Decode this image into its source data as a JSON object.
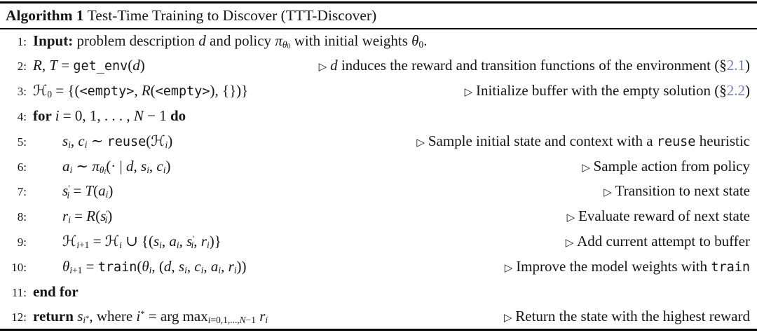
{
  "colors": {
    "link": "#6e7ec8",
    "text": "#161616",
    "rule": "#000000"
  },
  "title": {
    "label": "Algorithm 1",
    "text": " Test-Time Training to Discover (TTT-Discover)"
  },
  "lines": [
    {
      "num": "1:",
      "indent": 0,
      "code": [
        {
          "t": "Input:",
          "s": "kw"
        },
        {
          "t": " problem description "
        },
        {
          "t": "d",
          "s": "it"
        },
        {
          "t": " and policy "
        },
        {
          "t": "π",
          "s": "it"
        },
        {
          "t": "θ",
          "s": "sub it"
        },
        {
          "t": "0",
          "s": "subsub"
        },
        {
          "t": " with initial weights "
        },
        {
          "t": "θ",
          "s": "it"
        },
        {
          "t": "0",
          "s": "sub"
        },
        {
          "t": "."
        }
      ]
    },
    {
      "num": "2:",
      "indent": 0,
      "code": [
        {
          "t": "R",
          "s": "it"
        },
        {
          "t": ", "
        },
        {
          "t": "T",
          "s": "it"
        },
        {
          "t": " = "
        },
        {
          "t": "get_env",
          "s": "tt"
        },
        {
          "t": "("
        },
        {
          "t": "d",
          "s": "it"
        },
        {
          "t": ")"
        }
      ],
      "comment": [
        {
          "t": "▷ ",
          "s": "tri"
        },
        {
          "t": "d",
          "s": "it"
        },
        {
          "t": " induces the reward and transition functions of the environment (§"
        },
        {
          "t": "2.1",
          "s": "link"
        },
        {
          "t": ")"
        }
      ]
    },
    {
      "num": "3:",
      "indent": 0,
      "code": [
        {
          "t": "ℋ",
          "s": "scr"
        },
        {
          "t": "0",
          "s": "sub"
        },
        {
          "t": " = {("
        },
        {
          "t": "<empty>",
          "s": "tt"
        },
        {
          "t": ", "
        },
        {
          "t": "R",
          "s": "it"
        },
        {
          "t": "("
        },
        {
          "t": "<empty>",
          "s": "tt"
        },
        {
          "t": "), {})}"
        }
      ],
      "comment": [
        {
          "t": "▷ ",
          "s": "tri"
        },
        {
          "t": "Initialize buffer with the empty solution (§"
        },
        {
          "t": "2.2",
          "s": "link"
        },
        {
          "t": ")"
        }
      ]
    },
    {
      "num": "4:",
      "indent": 0,
      "code": [
        {
          "t": "for ",
          "s": "kw"
        },
        {
          "t": "i",
          "s": "it"
        },
        {
          "t": " = 0, 1, . . . , "
        },
        {
          "t": "N",
          "s": "it"
        },
        {
          "t": " − 1 "
        },
        {
          "t": "do",
          "s": "kw"
        }
      ]
    },
    {
      "num": "5:",
      "indent": 1,
      "code": [
        {
          "t": "s",
          "s": "it"
        },
        {
          "t": "i",
          "s": "sub it"
        },
        {
          "t": ", "
        },
        {
          "t": "c",
          "s": "it"
        },
        {
          "t": "i",
          "s": "sub it"
        },
        {
          "t": " ∼ "
        },
        {
          "t": "reuse",
          "s": "tt"
        },
        {
          "t": "("
        },
        {
          "t": "ℋ",
          "s": "scr"
        },
        {
          "t": "i",
          "s": "sub it"
        },
        {
          "t": ")"
        }
      ],
      "comment": [
        {
          "t": "▷ ",
          "s": "tri"
        },
        {
          "t": "Sample initial state and context with a "
        },
        {
          "t": "reuse",
          "s": "tt"
        },
        {
          "t": " heuristic"
        }
      ]
    },
    {
      "num": "6:",
      "indent": 1,
      "code": [
        {
          "t": "a",
          "s": "it"
        },
        {
          "t": "i",
          "s": "sub it"
        },
        {
          "t": " ∼ "
        },
        {
          "t": "π",
          "s": "it"
        },
        {
          "t": "θ",
          "s": "sub it"
        },
        {
          "t": "i",
          "s": "subsub it"
        },
        {
          "t": "(· | "
        },
        {
          "t": "d",
          "s": "it"
        },
        {
          "t": ", "
        },
        {
          "t": "s",
          "s": "it"
        },
        {
          "t": "i",
          "s": "sub it"
        },
        {
          "t": ", "
        },
        {
          "t": "c",
          "s": "it"
        },
        {
          "t": "i",
          "s": "sub it"
        },
        {
          "t": ")"
        }
      ],
      "comment": [
        {
          "t": "▷ ",
          "s": "tri"
        },
        {
          "t": "Sample action from policy"
        }
      ]
    },
    {
      "num": "7:",
      "indent": 1,
      "code": [
        {
          "t": "s",
          "s": "it"
        },
        {
          "t": "′",
          "s": "sup"
        },
        {
          "t": "i",
          "s": "sub it tuck"
        },
        {
          "t": " = "
        },
        {
          "t": "T",
          "s": "it"
        },
        {
          "t": "("
        },
        {
          "t": "a",
          "s": "it"
        },
        {
          "t": "i",
          "s": "sub it"
        },
        {
          "t": ")"
        }
      ],
      "comment": [
        {
          "t": "▷ ",
          "s": "tri"
        },
        {
          "t": "Transition to next state"
        }
      ]
    },
    {
      "num": "8:",
      "indent": 1,
      "code": [
        {
          "t": "r",
          "s": "it"
        },
        {
          "t": "i",
          "s": "sub it"
        },
        {
          "t": " = "
        },
        {
          "t": "R",
          "s": "it"
        },
        {
          "t": "("
        },
        {
          "t": "s",
          "s": "it"
        },
        {
          "t": "′",
          "s": "sup"
        },
        {
          "t": "i",
          "s": "sub it tuck"
        },
        {
          "t": ")"
        }
      ],
      "comment": [
        {
          "t": "▷ ",
          "s": "tri"
        },
        {
          "t": "Evaluate reward of next state"
        }
      ]
    },
    {
      "num": "9:",
      "indent": 1,
      "code": [
        {
          "t": "ℋ",
          "s": "scr"
        },
        {
          "t": "i",
          "s": "sub it"
        },
        {
          "t": "+1",
          "s": "sub"
        },
        {
          "t": " = "
        },
        {
          "t": "ℋ",
          "s": "scr"
        },
        {
          "t": "i",
          "s": "sub it"
        },
        {
          "t": " ∪ {("
        },
        {
          "t": "s",
          "s": "it"
        },
        {
          "t": "i",
          "s": "sub it"
        },
        {
          "t": ", "
        },
        {
          "t": "a",
          "s": "it"
        },
        {
          "t": "i",
          "s": "sub it"
        },
        {
          "t": ", "
        },
        {
          "t": "s",
          "s": "it"
        },
        {
          "t": "′",
          "s": "sup"
        },
        {
          "t": "i",
          "s": "sub it tuck"
        },
        {
          "t": ", "
        },
        {
          "t": "r",
          "s": "it"
        },
        {
          "t": "i",
          "s": "sub it"
        },
        {
          "t": ")}"
        }
      ],
      "comment": [
        {
          "t": "▷ ",
          "s": "tri"
        },
        {
          "t": "Add current attempt to buffer"
        }
      ]
    },
    {
      "num": "10:",
      "indent": 1,
      "code": [
        {
          "t": "θ",
          "s": "it"
        },
        {
          "t": "i",
          "s": "sub it"
        },
        {
          "t": "+1",
          "s": "sub"
        },
        {
          "t": " = "
        },
        {
          "t": "train",
          "s": "tt"
        },
        {
          "t": "("
        },
        {
          "t": "θ",
          "s": "it"
        },
        {
          "t": "i",
          "s": "sub it"
        },
        {
          "t": ", ("
        },
        {
          "t": "d",
          "s": "it"
        },
        {
          "t": ", "
        },
        {
          "t": "s",
          "s": "it"
        },
        {
          "t": "i",
          "s": "sub it"
        },
        {
          "t": ", "
        },
        {
          "t": "c",
          "s": "it"
        },
        {
          "t": "i",
          "s": "sub it"
        },
        {
          "t": ", "
        },
        {
          "t": "a",
          "s": "it"
        },
        {
          "t": "i",
          "s": "sub it"
        },
        {
          "t": ", "
        },
        {
          "t": "r",
          "s": "it"
        },
        {
          "t": "i",
          "s": "sub it"
        },
        {
          "t": "))"
        }
      ],
      "comment": [
        {
          "t": "▷ ",
          "s": "tri"
        },
        {
          "t": "Improve the model weights with "
        },
        {
          "t": "train",
          "s": "tt"
        }
      ]
    },
    {
      "num": "11:",
      "indent": 0,
      "code": [
        {
          "t": "end for",
          "s": "kw"
        }
      ]
    },
    {
      "num": "12:",
      "indent": 0,
      "code": [
        {
          "t": "return ",
          "s": "kw"
        },
        {
          "t": "s",
          "s": "it"
        },
        {
          "t": "i",
          "s": "sub it"
        },
        {
          "t": "*",
          "s": "substar"
        },
        {
          "t": ", where "
        },
        {
          "t": "i",
          "s": "it"
        },
        {
          "t": "*",
          "s": "sup"
        },
        {
          "t": " = arg max"
        },
        {
          "t": "i",
          "s": "sub it"
        },
        {
          "t": "=0,1,...,",
          "s": "sub"
        },
        {
          "t": "N",
          "s": "sub it"
        },
        {
          "t": "−1",
          "s": "sub"
        },
        {
          "t": " "
        },
        {
          "t": "r",
          "s": "it"
        },
        {
          "t": "i",
          "s": "sub it"
        }
      ],
      "comment": [
        {
          "t": "▷ ",
          "s": "tri"
        },
        {
          "t": "Return the state with the highest reward"
        }
      ]
    }
  ]
}
